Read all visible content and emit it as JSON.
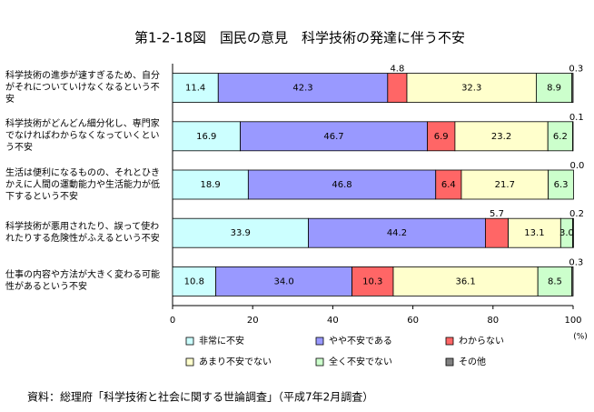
{
  "chart_data": {
    "type": "stacked-bar-horizontal",
    "title": "第1-2-18図　国民の意見　科学技術の発達に伴う不安",
    "source": "資料：総理府「科学技術と社会に関する世論調査」（平成7年2月調査）",
    "x_unit": "(%)",
    "categories": [
      "科学技術の進歩が速すぎるため、自分がそれについていけなくなるという不安",
      "科学技術がどんどん細分化し、専門家でなければわからなくなっていくという不安",
      "生活は便利になるものの、それとひきかえに人間の運動能力や生活能力が低下するという不安",
      "科学技術が悪用されたり、誤って使われたりする危険性がふえるという不安",
      "仕事の内容や方法が大きく変わる可能性があるという不安"
    ],
    "series": [
      {
        "name": "非常に不安",
        "color": "#ccffff",
        "values": [
          11.4,
          16.9,
          18.9,
          33.9,
          10.8
        ],
        "value_labels": [
          "11.4",
          "16.9",
          "18.9",
          "33.9",
          "10.8"
        ]
      },
      {
        "name": "やや不安である",
        "color": "#9999ff",
        "values": [
          42.3,
          46.7,
          46.8,
          44.2,
          34.0
        ],
        "value_labels": [
          "42.3",
          "46.7",
          "46.8",
          "44.2",
          "34.0"
        ]
      },
      {
        "name": "わからない",
        "color": "#ff6666",
        "values": [
          4.8,
          6.9,
          6.4,
          5.7,
          10.3
        ],
        "value_labels": [
          "4.8",
          "6.9",
          "6.4",
          "5.7",
          "10.3"
        ]
      },
      {
        "name": "あまり不安でない",
        "color": "#ffffcc",
        "values": [
          32.3,
          23.2,
          21.7,
          13.1,
          36.1
        ],
        "value_labels": [
          "32.3",
          "23.2",
          "21.7",
          "13.1",
          "36.1"
        ]
      },
      {
        "name": "全く不安でない",
        "color": "#ccffcc",
        "values": [
          8.9,
          6.2,
          6.3,
          3.0,
          8.5
        ],
        "value_labels": [
          "8.9",
          "6.2",
          "6.3",
          "3.0",
          "8.5"
        ]
      },
      {
        "name": "その他",
        "color": "#808080",
        "values": [
          0.3,
          0.1,
          0.0,
          0.2,
          0.3
        ],
        "value_labels": [
          "0.3",
          "0.1",
          "0.0",
          "0.2",
          "0.3"
        ]
      }
    ],
    "xlim": [
      0,
      100
    ],
    "xticks": [
      0,
      20,
      40,
      60,
      80,
      100
    ]
  }
}
